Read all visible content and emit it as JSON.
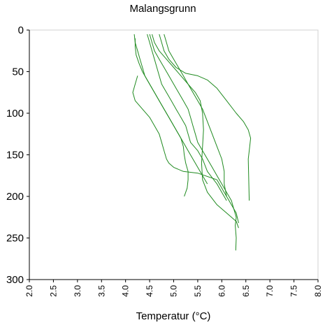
{
  "chart_data": {
    "type": "line",
    "title": "Malangsgrunn",
    "xlabel": "Temperatur (°C)",
    "ylabel": "",
    "xlim": [
      2.0,
      8.0
    ],
    "ylim": [
      0,
      300
    ],
    "y_inverted": true,
    "x_ticks": [
      "2.0",
      "2.5",
      "3.0",
      "3.5",
      "4.0",
      "4.5",
      "5.0",
      "5.5",
      "6.0",
      "6.5",
      "7.0",
      "7.5",
      "8.0"
    ],
    "y_ticks": [
      "0",
      "50",
      "100",
      "150",
      "200",
      "250",
      "300"
    ],
    "grid": false,
    "line_color": "#1f8a1f",
    "series": [
      {
        "x": [
          4.18,
          4.2,
          4.25,
          4.3,
          4.35,
          4.4,
          4.5,
          4.6,
          4.7,
          4.8,
          4.9,
          5.0,
          5.1,
          5.2,
          5.3,
          5.4,
          5.5,
          5.6,
          5.7
        ],
        "y": [
          5,
          15,
          25,
          35,
          45,
          55,
          65,
          75,
          85,
          95,
          105,
          115,
          125,
          135,
          145,
          155,
          165,
          175,
          185
        ]
      },
      {
        "x": [
          4.2,
          4.2,
          4.22,
          4.28,
          4.35,
          4.45,
          4.55,
          4.65,
          4.75,
          4.85,
          4.95,
          5.05,
          5.15,
          5.2,
          5.22,
          5.25,
          5.3,
          5.3,
          5.28,
          5.25,
          5.22
        ],
        "y": [
          10,
          20,
          30,
          40,
          50,
          60,
          70,
          80,
          90,
          100,
          110,
          120,
          130,
          140,
          150,
          160,
          170,
          180,
          190,
          195,
          200
        ]
      },
      {
        "x": [
          4.25,
          4.2,
          4.15,
          4.2,
          4.35,
          4.5,
          4.6,
          4.7,
          4.75,
          4.8,
          4.85,
          4.9,
          5.0,
          5.2,
          5.5,
          5.9,
          6.1
        ],
        "y": [
          55,
          65,
          75,
          85,
          95,
          105,
          115,
          125,
          135,
          145,
          155,
          160,
          165,
          170,
          172,
          180,
          200
        ]
      },
      {
        "x": [
          4.45,
          4.5,
          4.55,
          4.6,
          4.65,
          4.7,
          4.75,
          4.85,
          4.95,
          5.05,
          5.15,
          5.25,
          5.3,
          5.35,
          5.5,
          5.6,
          5.7,
          5.9,
          6.0,
          6.1
        ],
        "y": [
          5,
          15,
          25,
          35,
          45,
          55,
          65,
          75,
          85,
          95,
          105,
          115,
          125,
          135,
          145,
          155,
          170,
          185,
          195,
          205
        ]
      },
      {
        "x": [
          4.5,
          4.55,
          4.6,
          4.7,
          4.8,
          4.9,
          5.0,
          5.1,
          5.2,
          5.3,
          5.35,
          5.4,
          5.45,
          5.5,
          5.6,
          5.7,
          5.8,
          5.9,
          6.0,
          6.1,
          6.2,
          6.25,
          6.3,
          6.28,
          6.3,
          6.29
        ],
        "y": [
          5,
          15,
          25,
          35,
          45,
          55,
          65,
          75,
          85,
          95,
          105,
          115,
          125,
          135,
          145,
          155,
          165,
          175,
          185,
          195,
          205,
          215,
          225,
          235,
          250,
          265
        ]
      },
      {
        "x": [
          4.55,
          4.6,
          4.7,
          4.85,
          5.0,
          5.15,
          5.3,
          5.45,
          5.55,
          5.6,
          5.62,
          5.6,
          5.58,
          5.6,
          5.7,
          5.9,
          6.1,
          6.3,
          6.35
        ],
        "y": [
          5,
          15,
          25,
          35,
          45,
          55,
          65,
          75,
          85,
          100,
          120,
          140,
          160,
          180,
          195,
          210,
          220,
          230,
          238
        ]
      },
      {
        "x": [
          4.7,
          4.75,
          4.8,
          4.9,
          5.05,
          5.25,
          5.5,
          5.7,
          5.9,
          6.1,
          6.3,
          6.45,
          6.55,
          6.6,
          6.58,
          6.55,
          6.56,
          6.57
        ],
        "y": [
          5,
          15,
          25,
          35,
          45,
          52,
          55,
          60,
          70,
          85,
          100,
          110,
          120,
          130,
          140,
          155,
          180,
          205
        ]
      },
      {
        "x": [
          4.8,
          4.85,
          4.9,
          5.0,
          5.1,
          5.2,
          5.3,
          5.4,
          5.5,
          5.6,
          5.7,
          5.8,
          5.9,
          6.0,
          6.05,
          6.05,
          6.1,
          6.2,
          6.3,
          6.35
        ],
        "y": [
          5,
          15,
          25,
          35,
          45,
          55,
          65,
          75,
          85,
          95,
          110,
          125,
          140,
          155,
          170,
          185,
          200,
          210,
          220,
          232
        ]
      }
    ]
  }
}
